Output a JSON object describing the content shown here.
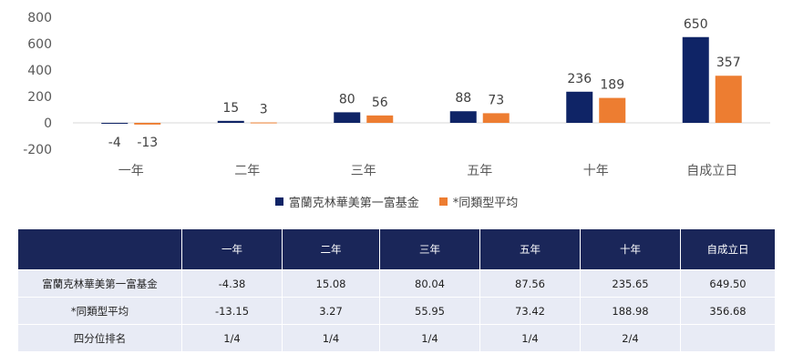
{
  "chart_data": {
    "type": "bar",
    "categories": [
      "一年",
      "二年",
      "三年",
      "五年",
      "十年",
      "自成立日"
    ],
    "series": [
      {
        "name": "富蘭克林華美第一富基金",
        "color": "#0f2466",
        "values": [
          -4,
          15,
          80,
          88,
          236,
          650
        ]
      },
      {
        "name": "*同類型平均",
        "color": "#ed7d31",
        "values": [
          -13,
          3,
          56,
          73,
          189,
          357
        ]
      }
    ],
    "ylim": [
      -200,
      800
    ],
    "yticks": [
      -200,
      0,
      200,
      400,
      600,
      800
    ],
    "legend": "bottom"
  },
  "table": {
    "header": [
      "",
      "一年",
      "二年",
      "三年",
      "五年",
      "十年",
      "自成立日"
    ],
    "rows": [
      {
        "label": "富蘭克林華美第一富基金",
        "cells": [
          "-4.38",
          "15.08",
          "80.04",
          "87.56",
          "235.65",
          "649.50"
        ]
      },
      {
        "label": "*同類型平均",
        "cells": [
          "-13.15",
          "3.27",
          "55.95",
          "73.42",
          "188.98",
          "356.68"
        ]
      },
      {
        "label": "四分位排名",
        "cells": [
          "1/4",
          "1/4",
          "1/4",
          "1/4",
          "2/4",
          ""
        ]
      }
    ]
  }
}
